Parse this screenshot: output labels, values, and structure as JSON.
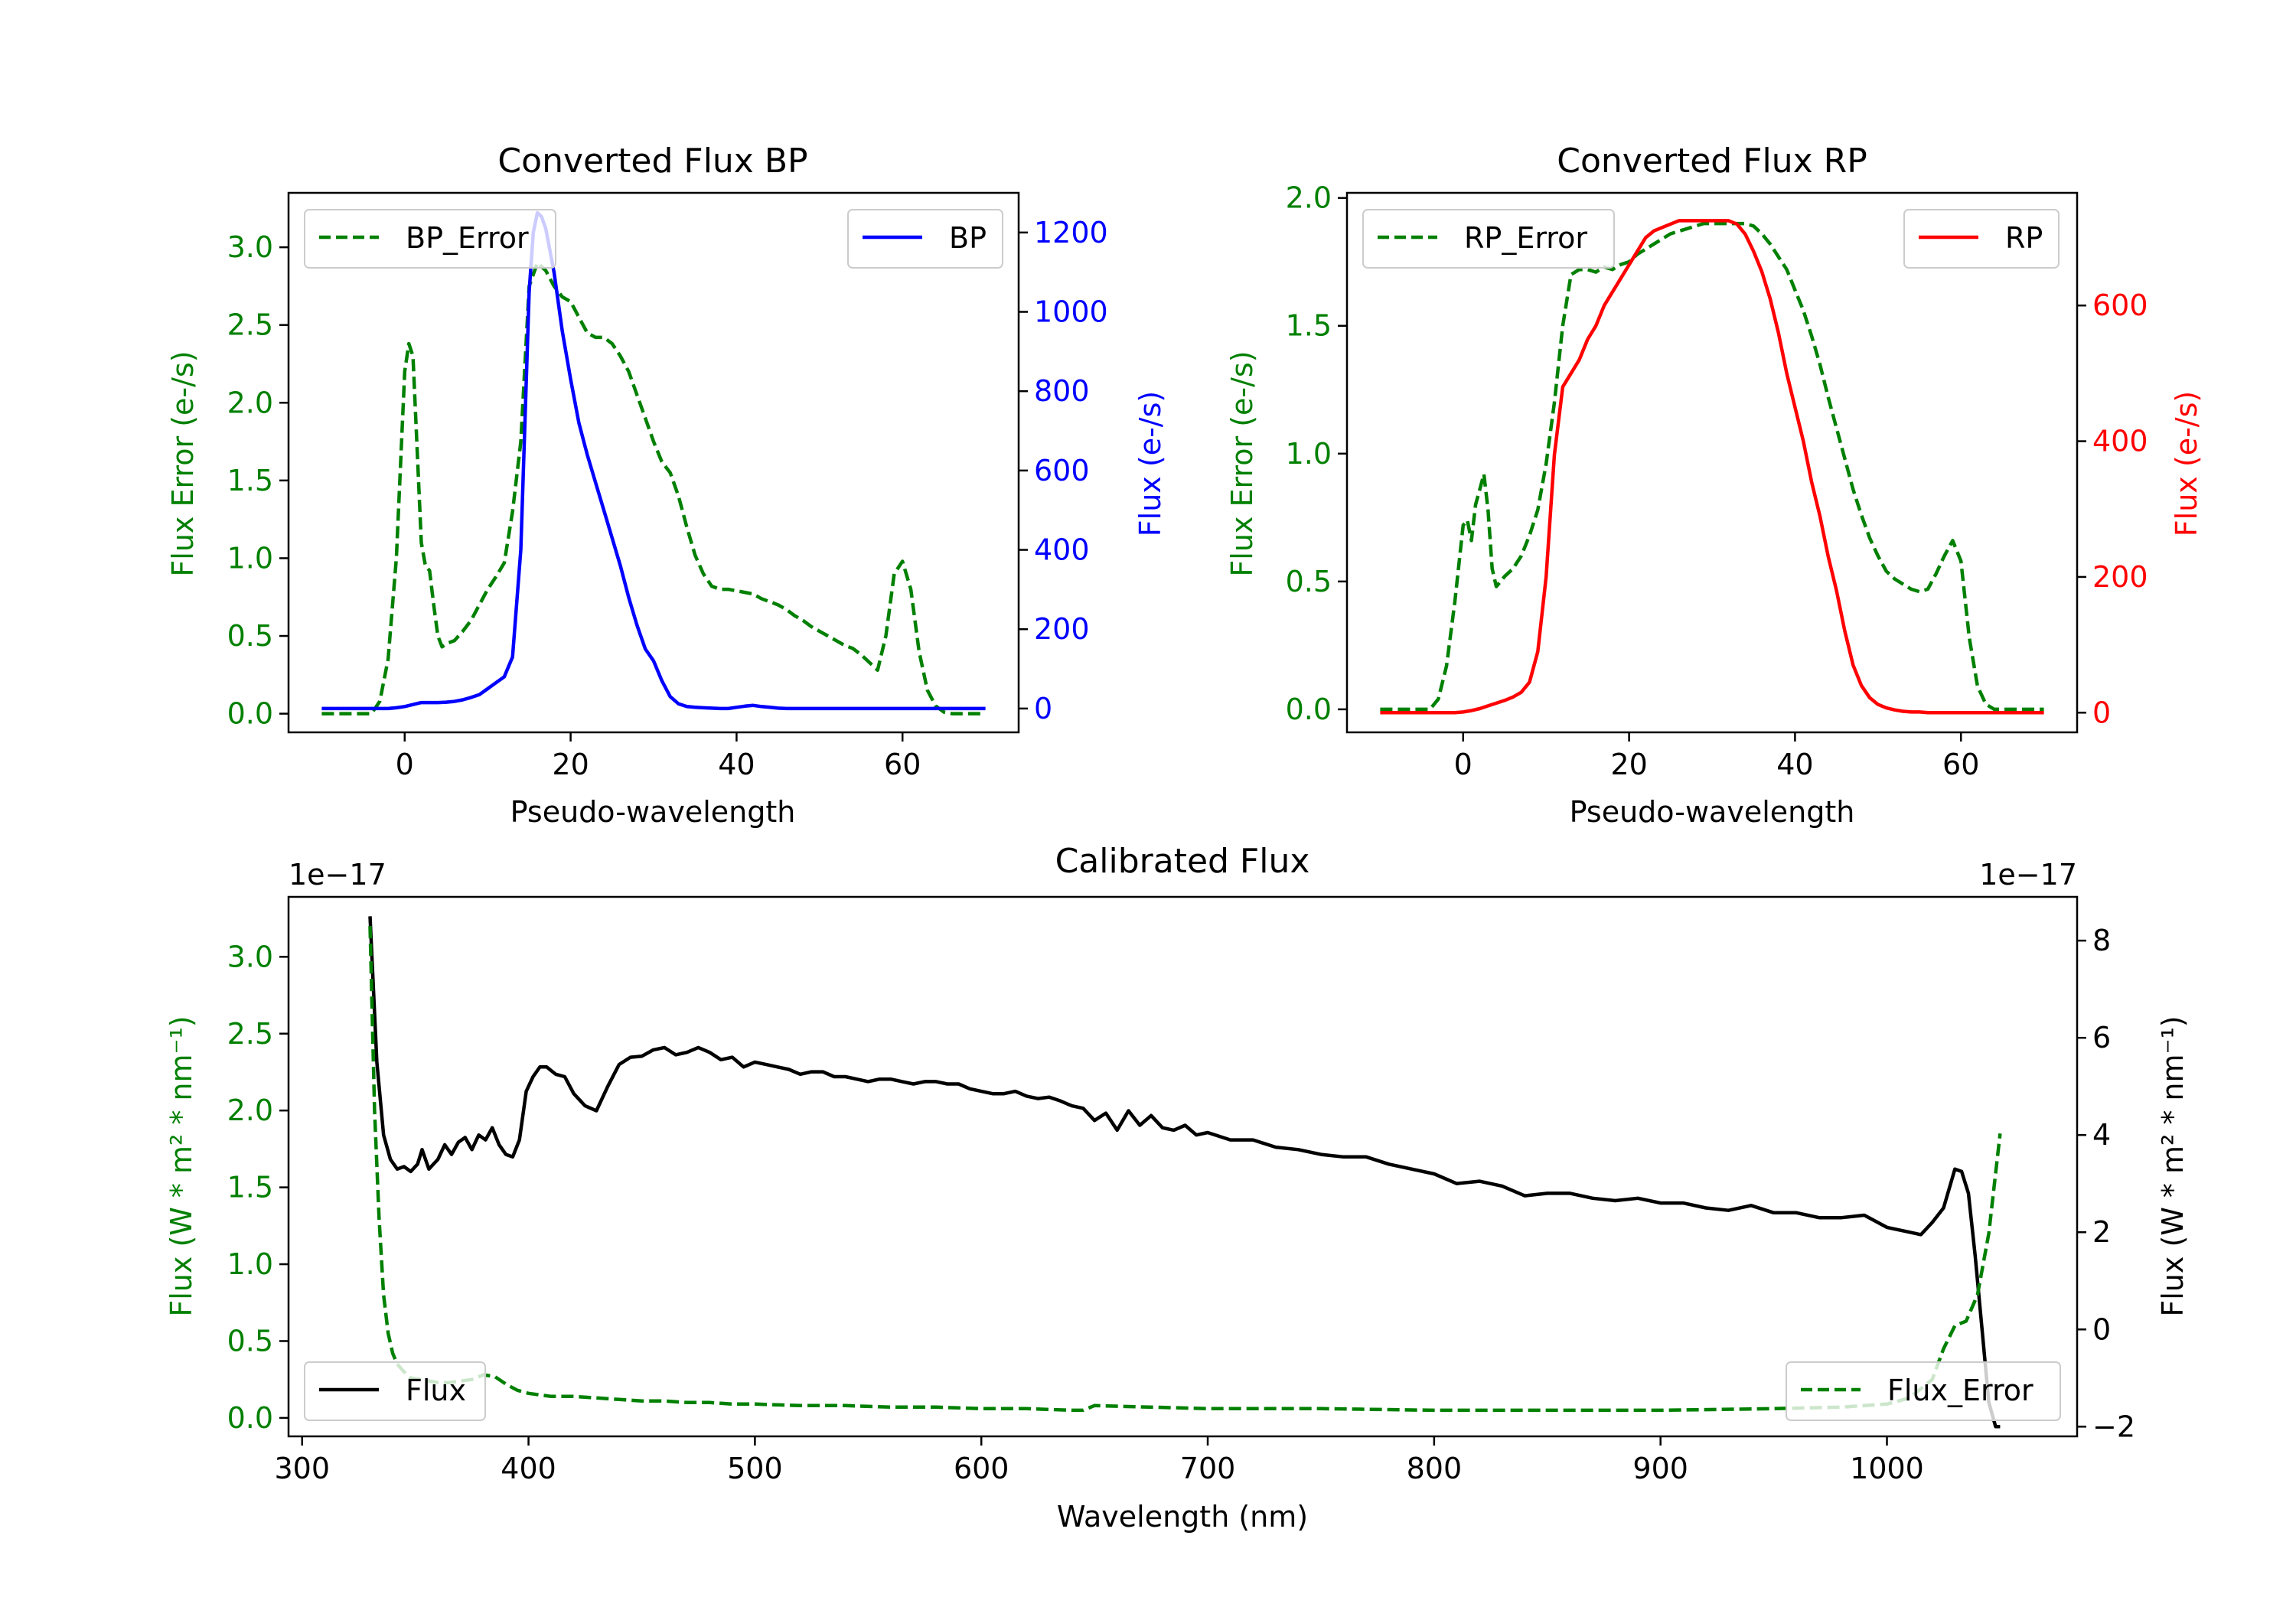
{
  "colors": {
    "green": "#008000",
    "blue": "#0000ff",
    "red": "#ff0000",
    "black": "#000000"
  },
  "chart_data": [
    {
      "id": "bp",
      "type": "line",
      "title": "Converted Flux BP",
      "xlabel": "Pseudo-wavelength",
      "ylabel_left": "Flux Error (e-/s)",
      "ylabel_right": "Flux (e-/s)",
      "xlim": [
        -14,
        74
      ],
      "ylim_left": [
        -0.12,
        3.35
      ],
      "ylim_right": [
        -60,
        1300
      ],
      "xticks": [
        0,
        20,
        40,
        60
      ],
      "yticks_left": [
        0.0,
        0.5,
        1.0,
        1.5,
        2.0,
        2.5,
        3.0
      ],
      "yticks_right": [
        0,
        200,
        400,
        600,
        800,
        1000,
        1200
      ],
      "series": [
        {
          "name": "BP_Error",
          "axis": "left",
          "color": "green",
          "style": "dashed",
          "legend": "top-left",
          "x": [
            -10,
            -4,
            -3,
            -2,
            -1,
            0,
            0.5,
            1,
            2,
            2.5,
            3,
            3.5,
            4,
            4.5,
            5,
            6,
            7,
            8,
            9,
            10,
            11,
            12,
            13,
            14,
            15,
            16,
            17,
            18,
            19,
            20,
            21,
            22,
            23,
            24,
            25,
            26,
            27,
            28,
            29,
            30,
            31,
            32,
            33,
            34,
            35,
            36,
            37,
            38,
            39,
            40,
            41,
            42,
            43,
            44,
            45,
            46,
            47,
            48,
            49,
            50,
            51,
            52,
            53,
            54,
            55,
            56,
            57,
            58,
            59,
            60,
            61,
            62,
            63,
            64,
            65,
            66,
            70
          ],
          "y": [
            0,
            0,
            0.08,
            0.35,
            1.0,
            2.2,
            2.38,
            2.3,
            1.1,
            0.95,
            0.92,
            0.7,
            0.5,
            0.43,
            0.45,
            0.47,
            0.53,
            0.6,
            0.7,
            0.8,
            0.88,
            0.97,
            1.3,
            1.75,
            2.75,
            2.9,
            2.85,
            2.75,
            2.68,
            2.65,
            2.55,
            2.45,
            2.42,
            2.42,
            2.38,
            2.3,
            2.2,
            2.05,
            1.9,
            1.75,
            1.62,
            1.55,
            1.4,
            1.2,
            1.02,
            0.9,
            0.82,
            0.8,
            0.8,
            0.79,
            0.78,
            0.77,
            0.74,
            0.72,
            0.7,
            0.67,
            0.63,
            0.6,
            0.56,
            0.53,
            0.5,
            0.47,
            0.44,
            0.42,
            0.38,
            0.33,
            0.28,
            0.5,
            0.9,
            0.98,
            0.8,
            0.4,
            0.15,
            0.05,
            0.01,
            0,
            0
          ]
        },
        {
          "name": "BP",
          "axis": "right",
          "color": "blue",
          "style": "solid",
          "legend": "top-right",
          "x": [
            -10,
            -7,
            -5,
            -3,
            -2,
            -1,
            0,
            1,
            2,
            3,
            4,
            5,
            6,
            7,
            8,
            9,
            10,
            11,
            12,
            13,
            14,
            15,
            15.5,
            16,
            16.5,
            17,
            18,
            19,
            20,
            21,
            22,
            23,
            24,
            25,
            26,
            27,
            28,
            29,
            30,
            31,
            32,
            33,
            34,
            35,
            36,
            37,
            38,
            39,
            40,
            41,
            42,
            43,
            44,
            45,
            46,
            47,
            48,
            49,
            50,
            51,
            52,
            53,
            54,
            55,
            56,
            57,
            58,
            59,
            60,
            61,
            62,
            63,
            64,
            65,
            66,
            67,
            68,
            70
          ],
          "y": [
            0,
            0,
            0,
            0,
            0,
            2,
            5,
            10,
            15,
            15,
            15,
            16,
            18,
            22,
            28,
            35,
            50,
            65,
            80,
            130,
            400,
            1050,
            1200,
            1250,
            1240,
            1210,
            1100,
            950,
            830,
            720,
            640,
            570,
            500,
            430,
            360,
            280,
            210,
            150,
            120,
            70,
            30,
            12,
            5,
            3,
            2,
            1,
            0,
            0,
            3,
            6,
            8,
            5,
            3,
            1,
            0,
            0,
            0,
            0,
            0,
            0,
            0,
            0,
            0,
            0,
            0,
            0,
            0,
            0,
            0,
            0,
            0,
            0,
            0,
            0,
            0,
            0,
            0,
            0
          ]
        }
      ]
    },
    {
      "id": "rp",
      "type": "line",
      "title": "Converted Flux RP",
      "xlabel": "Pseudo-wavelength",
      "ylabel_left": "Flux Error (e-/s)",
      "ylabel_right": "Flux (e-/s)",
      "xlim": [
        -14,
        74
      ],
      "ylim_left": [
        -0.09,
        2.02
      ],
      "ylim_right": [
        -29,
        766
      ],
      "xticks": [
        0,
        20,
        40,
        60
      ],
      "yticks_left": [
        0.0,
        0.5,
        1.0,
        1.5,
        2.0
      ],
      "yticks_right": [
        0,
        200,
        400,
        600
      ],
      "series": [
        {
          "name": "RP_Error",
          "axis": "left",
          "color": "green",
          "style": "dashed",
          "legend": "top-left",
          "x": [
            -10,
            -4,
            -3,
            -2,
            -1,
            0,
            0.5,
            1,
            1.5,
            2,
            2.5,
            3,
            3.5,
            4,
            4.5,
            5,
            6,
            7,
            8,
            9,
            10,
            11,
            12,
            13,
            14,
            15,
            16,
            17,
            18,
            19,
            20,
            21,
            22,
            23,
            24,
            25,
            26,
            27,
            28,
            29,
            30,
            31,
            32,
            33,
            34,
            35,
            36,
            37,
            38,
            39,
            40,
            41,
            42,
            43,
            44,
            45,
            46,
            47,
            48,
            49,
            50,
            51,
            52,
            53,
            54,
            55,
            56,
            57,
            58,
            59,
            60,
            61,
            62,
            63,
            64,
            65,
            70
          ],
          "y": [
            0,
            0,
            0.04,
            0.17,
            0.42,
            0.72,
            0.74,
            0.66,
            0.8,
            0.86,
            0.92,
            0.78,
            0.55,
            0.48,
            0.5,
            0.52,
            0.55,
            0.6,
            0.68,
            0.78,
            0.96,
            1.2,
            1.5,
            1.7,
            1.72,
            1.72,
            1.71,
            1.73,
            1.72,
            1.74,
            1.75,
            1.78,
            1.8,
            1.82,
            1.84,
            1.86,
            1.87,
            1.88,
            1.89,
            1.9,
            1.9,
            1.9,
            1.9,
            1.9,
            1.9,
            1.89,
            1.86,
            1.82,
            1.77,
            1.72,
            1.64,
            1.56,
            1.46,
            1.35,
            1.22,
            1.1,
            0.98,
            0.86,
            0.76,
            0.67,
            0.6,
            0.54,
            0.51,
            0.49,
            0.47,
            0.46,
            0.47,
            0.53,
            0.6,
            0.66,
            0.58,
            0.28,
            0.09,
            0.02,
            0,
            0,
            0
          ]
        },
        {
          "name": "RP",
          "axis": "right",
          "color": "red",
          "style": "solid",
          "legend": "top-right",
          "x": [
            -10,
            -5,
            -3,
            -1,
            0,
            1,
            2,
            3,
            4,
            5,
            6,
            7,
            8,
            9,
            10,
            11,
            12,
            13,
            14,
            15,
            16,
            17,
            18,
            19,
            20,
            21,
            22,
            23,
            24,
            25,
            26,
            27,
            28,
            29,
            30,
            31,
            32,
            33,
            34,
            35,
            36,
            37,
            38,
            39,
            40,
            41,
            42,
            43,
            44,
            45,
            46,
            47,
            48,
            49,
            50,
            51,
            52,
            53,
            54,
            55,
            56,
            57,
            58,
            60,
            65,
            70
          ],
          "y": [
            0,
            0,
            0,
            0,
            1,
            3,
            6,
            10,
            14,
            18,
            23,
            30,
            45,
            90,
            200,
            380,
            480,
            500,
            520,
            550,
            570,
            600,
            620,
            640,
            660,
            680,
            700,
            710,
            715,
            720,
            725,
            725,
            725,
            725,
            725,
            725,
            725,
            720,
            705,
            680,
            650,
            610,
            560,
            500,
            450,
            400,
            340,
            290,
            230,
            180,
            120,
            70,
            40,
            22,
            12,
            7,
            4,
            2,
            1,
            1,
            0,
            0,
            0,
            0,
            0,
            0
          ]
        }
      ]
    },
    {
      "id": "calibrated",
      "type": "line",
      "title": "Calibrated Flux",
      "xlabel": "Wavelength (nm)",
      "ylabel_left": "Flux (W * m² * nm⁻¹)",
      "ylabel_right": "Flux (W * m² * nm⁻¹)",
      "offset_left": "1e−17",
      "offset_right": "1e−17",
      "xlim": [
        294,
        1084
      ],
      "ylim_left": [
        -0.12,
        3.39
      ],
      "ylim_right": [
        -2.2,
        8.9
      ],
      "xticks": [
        300,
        400,
        500,
        600,
        700,
        800,
        900,
        1000
      ],
      "yticks_left": [
        0.0,
        0.5,
        1.0,
        1.5,
        2.0,
        2.5,
        3.0
      ],
      "yticks_right": [
        -2,
        0,
        2,
        4,
        6,
        8
      ],
      "series": [
        {
          "name": "Flux",
          "axis": "right",
          "color": "black",
          "style": "solid",
          "legend": "bottom-left",
          "x": [
            330,
            333,
            336,
            339,
            342,
            345,
            348,
            351,
            353,
            356,
            360,
            363,
            366,
            369,
            372,
            375,
            378,
            381,
            384,
            387,
            390,
            393,
            396,
            399,
            402,
            405,
            408,
            412,
            416,
            420,
            425,
            430,
            435,
            440,
            445,
            450,
            455,
            460,
            465,
            470,
            475,
            480,
            485,
            490,
            495,
            500,
            505,
            510,
            515,
            520,
            525,
            530,
            535,
            540,
            545,
            550,
            555,
            560,
            565,
            570,
            575,
            580,
            585,
            590,
            595,
            600,
            605,
            610,
            615,
            620,
            625,
            630,
            635,
            640,
            645,
            650,
            655,
            660,
            665,
            670,
            675,
            680,
            685,
            690,
            695,
            700,
            710,
            720,
            730,
            740,
            750,
            760,
            770,
            780,
            790,
            800,
            810,
            820,
            830,
            840,
            850,
            860,
            870,
            880,
            890,
            900,
            910,
            920,
            930,
            940,
            950,
            960,
            970,
            980,
            990,
            1000,
            1005,
            1010,
            1015,
            1020,
            1025,
            1030,
            1033,
            1036,
            1039,
            1042,
            1045,
            1048,
            1050
          ],
          "y": [
            8.5,
            5.5,
            4.0,
            3.5,
            3.3,
            3.35,
            3.25,
            3.4,
            3.7,
            3.3,
            3.5,
            3.8,
            3.6,
            3.85,
            3.95,
            3.7,
            4.0,
            3.9,
            4.15,
            3.8,
            3.6,
            3.55,
            3.9,
            4.9,
            5.2,
            5.4,
            5.4,
            5.25,
            5.2,
            4.85,
            4.6,
            4.5,
            5.0,
            5.45,
            5.6,
            5.62,
            5.75,
            5.8,
            5.65,
            5.7,
            5.8,
            5.7,
            5.55,
            5.6,
            5.4,
            5.5,
            5.45,
            5.4,
            5.35,
            5.25,
            5.3,
            5.3,
            5.2,
            5.2,
            5.15,
            5.1,
            5.15,
            5.15,
            5.1,
            5.05,
            5.1,
            5.1,
            5.05,
            5.05,
            4.95,
            4.9,
            4.85,
            4.85,
            4.9,
            4.8,
            4.75,
            4.78,
            4.7,
            4.6,
            4.55,
            4.3,
            4.45,
            4.1,
            4.5,
            4.2,
            4.4,
            4.15,
            4.1,
            4.2,
            4.0,
            4.05,
            3.9,
            3.9,
            3.75,
            3.7,
            3.6,
            3.55,
            3.55,
            3.4,
            3.3,
            3.2,
            3.0,
            3.05,
            2.95,
            2.75,
            2.8,
            2.8,
            2.7,
            2.65,
            2.7,
            2.6,
            2.6,
            2.5,
            2.45,
            2.55,
            2.4,
            2.4,
            2.3,
            2.3,
            2.35,
            2.1,
            2.05,
            2.0,
            1.95,
            2.2,
            2.5,
            3.3,
            3.25,
            2.8,
            1.5,
            0.0,
            -1.5,
            -2.0,
            -2.0
          ]
        },
        {
          "name": "Flux_Error",
          "axis": "left",
          "color": "green",
          "style": "dashed",
          "legend": "bottom-right",
          "x": [
            330,
            332,
            334,
            336,
            338,
            340,
            342,
            345,
            348,
            352,
            356,
            360,
            365,
            370,
            375,
            380,
            385,
            390,
            395,
            400,
            410,
            420,
            430,
            440,
            450,
            460,
            470,
            480,
            490,
            500,
            520,
            540,
            560,
            580,
            600,
            620,
            640,
            645,
            650,
            700,
            750,
            800,
            850,
            900,
            950,
            980,
            1000,
            1010,
            1020,
            1025,
            1030,
            1035,
            1040,
            1045,
            1050
          ],
          "y": [
            3.2,
            2.0,
            1.3,
            0.8,
            0.55,
            0.42,
            0.35,
            0.3,
            0.26,
            0.25,
            0.24,
            0.23,
            0.23,
            0.24,
            0.25,
            0.28,
            0.27,
            0.22,
            0.18,
            0.16,
            0.14,
            0.14,
            0.13,
            0.12,
            0.11,
            0.11,
            0.1,
            0.1,
            0.09,
            0.09,
            0.08,
            0.08,
            0.07,
            0.07,
            0.06,
            0.06,
            0.05,
            0.05,
            0.08,
            0.06,
            0.06,
            0.05,
            0.05,
            0.05,
            0.06,
            0.07,
            0.09,
            0.13,
            0.25,
            0.45,
            0.6,
            0.63,
            0.8,
            1.2,
            1.85
          ]
        }
      ]
    }
  ]
}
